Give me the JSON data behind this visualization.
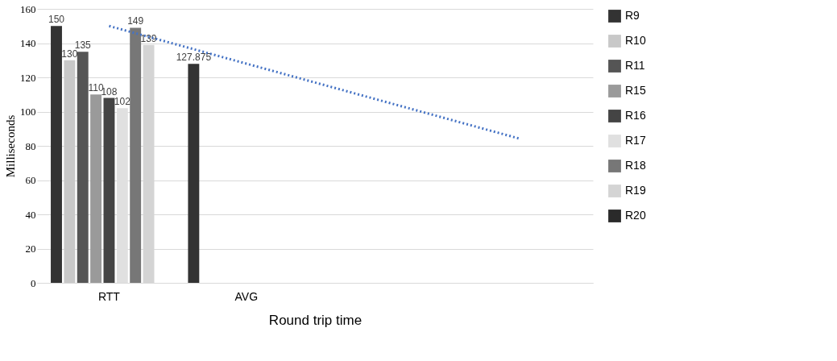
{
  "chart_data": {
    "type": "bar",
    "xlabel": "Round trip time",
    "ylabel": "Milliseconds",
    "categories": [
      "RTT",
      "AVG",
      null,
      null
    ],
    "series": [
      {
        "name": "R9",
        "color": "#333333",
        "values": [
          150,
          127.875,
          null,
          null
        ],
        "value_labels": [
          "150",
          "127.875",
          null,
          null
        ]
      },
      {
        "name": "R10",
        "color": "#c8c8c8",
        "values": [
          130,
          null,
          null,
          null
        ],
        "value_labels": [
          "130",
          null,
          null,
          null
        ]
      },
      {
        "name": "R11",
        "color": "#555555",
        "values": [
          135,
          null,
          null,
          null
        ],
        "value_labels": [
          "135",
          null,
          null,
          null
        ]
      },
      {
        "name": "R15",
        "color": "#9a9a9a",
        "values": [
          110,
          null,
          null,
          null
        ],
        "value_labels": [
          "110",
          null,
          null,
          null
        ]
      },
      {
        "name": "R16",
        "color": "#444444",
        "values": [
          108,
          null,
          null,
          null
        ],
        "value_labels": [
          "108",
          null,
          null,
          null
        ]
      },
      {
        "name": "R17",
        "color": "#e0e0e0",
        "values": [
          102,
          null,
          null,
          null
        ],
        "value_labels": [
          "102",
          null,
          null,
          null
        ]
      },
      {
        "name": "R18",
        "color": "#777777",
        "values": [
          149,
          null,
          null,
          null
        ],
        "value_labels": [
          "149",
          null,
          null,
          null
        ]
      },
      {
        "name": "R19",
        "color": "#d4d4d4",
        "values": [
          139,
          null,
          null,
          null
        ],
        "value_labels": [
          "139",
          null,
          null,
          null
        ]
      },
      {
        "name": "R20",
        "color": "#2a2a2a",
        "values": [
          null,
          null,
          null,
          null
        ]
      },
      {
        "type": "line",
        "color": "#4472c4",
        "line_style": "dotted",
        "values": [
          150,
          128,
          106,
          84
        ]
      }
    ],
    "ylim": [
      0,
      160
    ],
    "yticks": [
      0,
      20,
      40,
      60,
      80,
      100,
      120,
      140,
      160
    ],
    "grid": "y",
    "legend": "right"
  }
}
